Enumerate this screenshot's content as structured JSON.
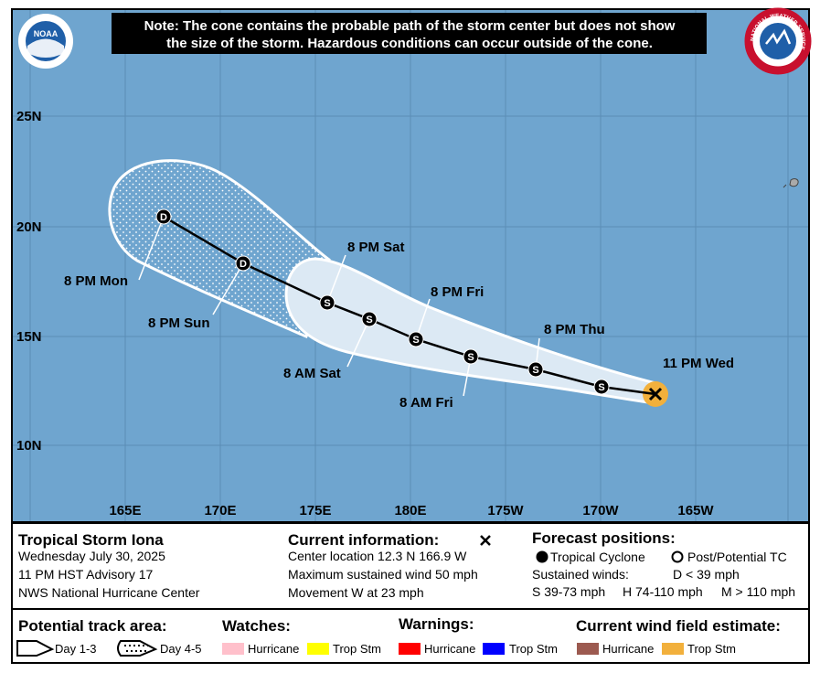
{
  "note": [
    "Note: The cone contains the probable path of the storm center but does not show",
    "the size of the storm. Hazardous conditions can occur outside of the cone."
  ],
  "logos": {
    "noaa": "NOAA",
    "nws": "NATIONAL WEATHER SERVICE"
  },
  "map": {
    "lat_labels": [
      "25N",
      "20N",
      "15N",
      "10N"
    ],
    "lon_labels": [
      "165E",
      "170E",
      "175E",
      "180E",
      "175W",
      "170W",
      "165W"
    ],
    "track": [
      {
        "label": "11 PM Wed",
        "symbol": null
      },
      {
        "label": null,
        "symbol": "S"
      },
      {
        "label": "8 PM Thu",
        "symbol": "S"
      },
      {
        "label": "8 AM Fri",
        "symbol": "S"
      },
      {
        "label": "8 PM Fri",
        "symbol": "S"
      },
      {
        "label": "8 AM Sat",
        "symbol": "S"
      },
      {
        "label": "8 PM Sat",
        "symbol": "S"
      },
      {
        "label": "8 PM Sun",
        "symbol": "D"
      },
      {
        "label": "8 PM Mon",
        "symbol": "D"
      }
    ]
  },
  "legend": {
    "storm": {
      "name": "Tropical Storm Iona",
      "date": "Wednesday July 30, 2025",
      "advisory": "11 PM HST Advisory 17",
      "center": "NWS National Hurricane Center"
    },
    "current": {
      "title": "Current information:",
      "location": "Center location 12.3 N 166.9 W",
      "wind": "Maximum sustained wind 50 mph",
      "movement": "Movement W at 23 mph"
    },
    "forecast": {
      "title": "Forecast positions:",
      "tc": "Tropical Cyclone",
      "ptc": "Post/Potential TC",
      "winds": "Sustained winds:",
      "d": "D < 39 mph",
      "s": "S 39-73 mph",
      "h": "H 74-110 mph",
      "m": "M > 110 mph"
    },
    "track_area": {
      "title": "Potential track area:",
      "day13": "Day 1-3",
      "day45": "Day 4-5"
    },
    "watches": {
      "title": "Watches:",
      "hurricane": "Hurricane",
      "trop_stm": "Trop Stm"
    },
    "warnings": {
      "title": "Warnings:",
      "hurricane": "Hurricane",
      "trop_stm": "Trop Stm"
    },
    "wind_field": {
      "title": "Current wind field estimate:",
      "hurricane": "Hurricane",
      "trop_stm": "Trop Stm"
    }
  }
}
